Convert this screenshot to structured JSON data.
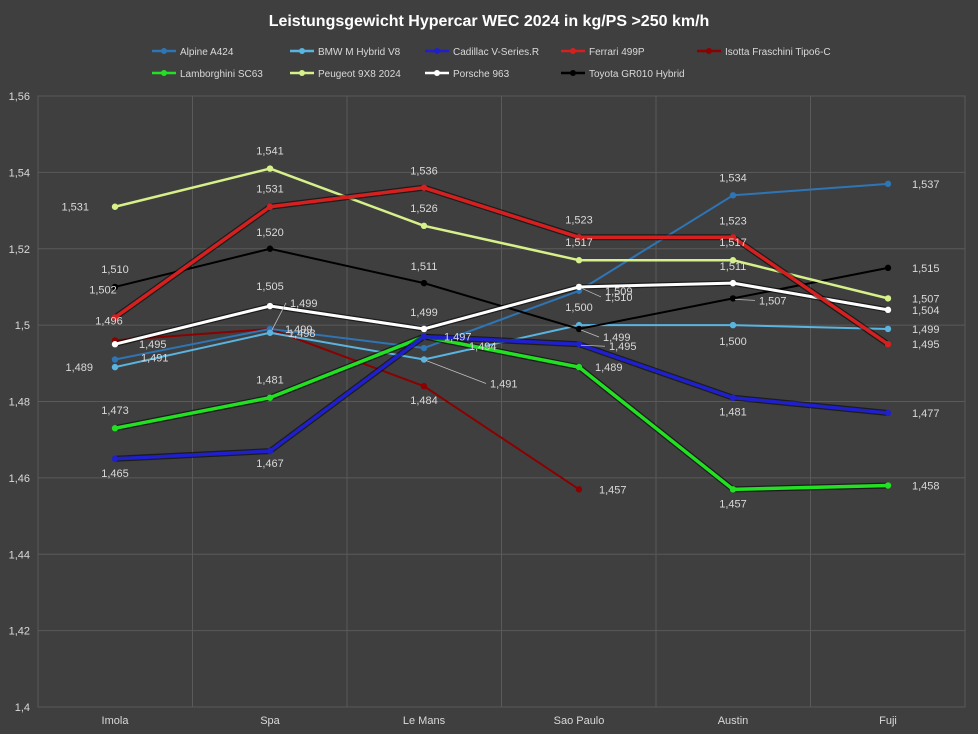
{
  "chart_data": {
    "type": "line",
    "title": "Leistungsgewicht  Hypercar WEC 2024 in kg/PS >250 km/h",
    "categories": [
      "Imola",
      "Spa",
      "Le Mans",
      "Sao Paulo",
      "Austin",
      "Fuji"
    ],
    "ylim": [
      1.4,
      1.56
    ],
    "yticks": [
      "1,4",
      "1,42",
      "1,44",
      "1,46",
      "1,48",
      "1,5",
      "1,52",
      "1,54",
      "1,56"
    ],
    "grid": true,
    "legend_position": "top",
    "series": [
      {
        "name": "Alpine A424",
        "color": "#2e75b6",
        "values": [
          1.491,
          1.499,
          1.494,
          1.509,
          1.534,
          1.537
        ],
        "labels": [
          "1,491",
          "1,499",
          "1,494",
          "1,509",
          "1,534",
          "1,537"
        ]
      },
      {
        "name": "BMW M Hybrid V8",
        "color": "#5ab4e0",
        "values": [
          1.489,
          1.498,
          1.491,
          1.5,
          1.5,
          1.499
        ],
        "labels": [
          "1,489",
          "1,498",
          "1,491",
          "1,500",
          "1,500",
          "1,499"
        ]
      },
      {
        "name": "Cadillac V-Series.R",
        "color": "#1f1fcc",
        "values": [
          1.465,
          1.467,
          1.497,
          1.495,
          1.481,
          1.477
        ],
        "labels": [
          "1,465",
          "1,467",
          "1,497",
          "1,495",
          "1,481",
          "1,477"
        ]
      },
      {
        "name": "Ferrari 499P",
        "color": "#d62020",
        "values": [
          1.502,
          1.531,
          1.536,
          1.523,
          1.523,
          1.495
        ],
        "labels": [
          "1,502",
          "1,531",
          "1,536",
          "1,523",
          "1,523",
          "1,495"
        ]
      },
      {
        "name": "Isotta Fraschini Tipo6-C",
        "color": "#8b0000",
        "values": [
          1.496,
          1.499,
          1.484,
          1.457,
          null,
          null
        ],
        "labels": [
          "1,496",
          "1,499",
          "1,484",
          "1,457",
          "",
          ""
        ]
      },
      {
        "name": "Lamborghini SC63",
        "color": "#22e022",
        "values": [
          1.473,
          1.481,
          1.497,
          1.489,
          1.457,
          1.458
        ],
        "labels": [
          "1,473",
          "1,481",
          "",
          "1,489",
          "1,457",
          "1,458"
        ]
      },
      {
        "name": "Peugeot 9X8 2024",
        "color": "#d6f08a",
        "values": [
          1.531,
          1.541,
          1.526,
          1.517,
          1.517,
          1.507
        ],
        "labels": [
          "1,531",
          "1,541",
          "1,526",
          "1,517",
          "1,517",
          "1,507"
        ]
      },
      {
        "name": "Porsche 963",
        "color": "#ffffff",
        "values": [
          1.495,
          1.505,
          1.499,
          1.51,
          1.511,
          1.504
        ],
        "labels": [
          "1,495",
          "1,505",
          "1,499",
          "1,510",
          "1,511",
          "1,504"
        ]
      },
      {
        "name": "Toyota GR010 Hybrid",
        "color": "#000000",
        "values": [
          1.51,
          1.52,
          1.511,
          1.499,
          1.507,
          1.515
        ],
        "labels": [
          "1,510",
          "1,520",
          "1,511",
          "1,499",
          "1,507",
          "1,515"
        ]
      }
    ]
  }
}
